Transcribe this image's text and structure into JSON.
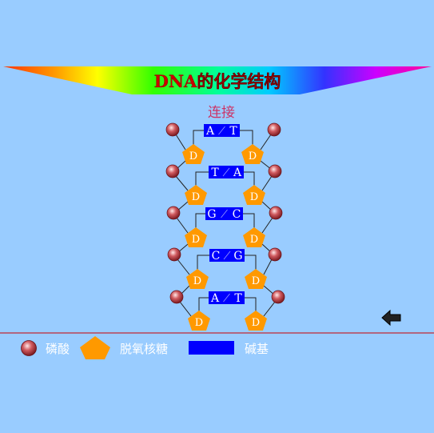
{
  "title": "DNA的化学结构",
  "subtitle": "连接",
  "pairs": [
    {
      "left": "A",
      "right": "T"
    },
    {
      "left": "T",
      "right": "A"
    },
    {
      "left": "G",
      "right": "C"
    },
    {
      "left": "C",
      "right": "G"
    },
    {
      "left": "A",
      "right": "T"
    }
  ],
  "sugar_label": "D",
  "legend": {
    "phosphate": "磷酸",
    "sugar": "脱氧核糖",
    "base": "碱基"
  },
  "colors": {
    "background": "#99ccff",
    "phosphate": "#b4353b",
    "sugar": "#ff9900",
    "base": "#0000ff",
    "title": "#cc0000",
    "subtitle": "#cc3366",
    "divider": "#cc0000"
  },
  "icons": {
    "back": "back-arrow-icon"
  }
}
